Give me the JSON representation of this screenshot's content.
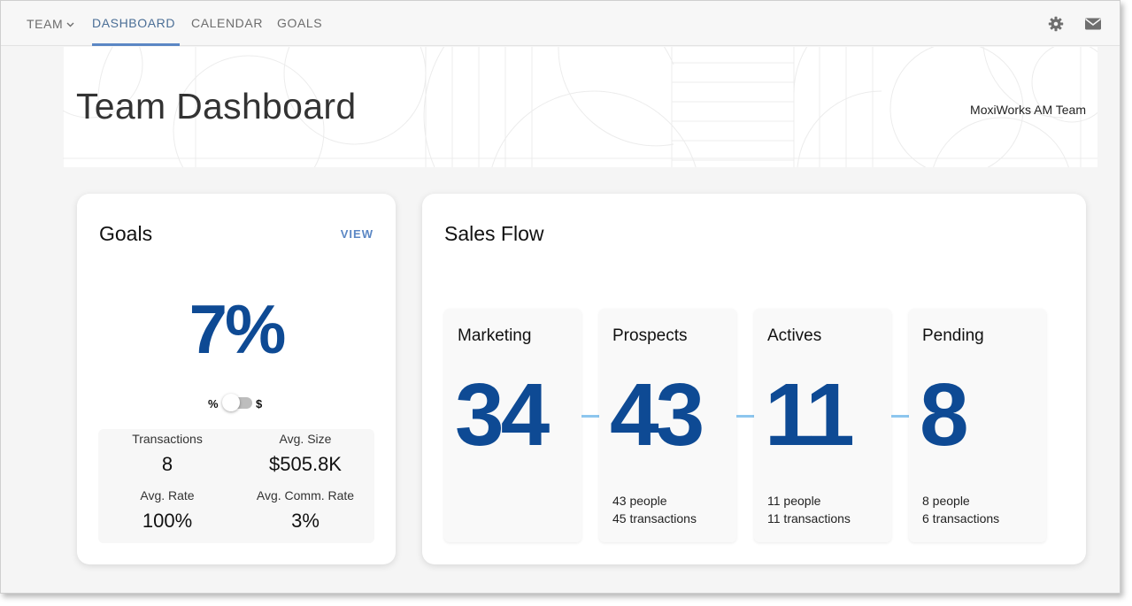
{
  "nav": {
    "items": [
      {
        "label": "TEAM"
      },
      {
        "label": "DASHBOARD"
      },
      {
        "label": "CALENDAR"
      },
      {
        "label": "GOALS"
      }
    ],
    "active": "DASHBOARD",
    "icons": [
      "gear-icon",
      "mail-icon"
    ]
  },
  "header": {
    "title": "Team Dashboard",
    "team_name": "MoxiWorks AM Team"
  },
  "goals": {
    "title": "Goals",
    "view_label": "VIEW",
    "percent": "7%",
    "toggle": {
      "left": "%",
      "right": "$",
      "selected": "%"
    },
    "stats": [
      {
        "label": "Transactions",
        "value": "8"
      },
      {
        "label": "Avg. Size",
        "value": "$505.8K"
      },
      {
        "label": "Avg. Rate",
        "value": "100%"
      },
      {
        "label": "Avg. Comm. Rate",
        "value": "3%"
      }
    ]
  },
  "sales_flow": {
    "title": "Sales Flow",
    "stages": [
      {
        "title": "Marketing",
        "count": "34",
        "people": "",
        "transactions": ""
      },
      {
        "title": "Prospects",
        "count": "43",
        "people": "43 people",
        "transactions": "45 transactions"
      },
      {
        "title": "Actives",
        "count": "11",
        "people": "11 people",
        "transactions": "11 transactions"
      },
      {
        "title": "Pending",
        "count": "8",
        "people": "8 people",
        "transactions": "6 transactions"
      }
    ]
  },
  "colors": {
    "accent": "#0e4a94",
    "link": "#5b87c4",
    "connector": "#8dc6ee"
  }
}
